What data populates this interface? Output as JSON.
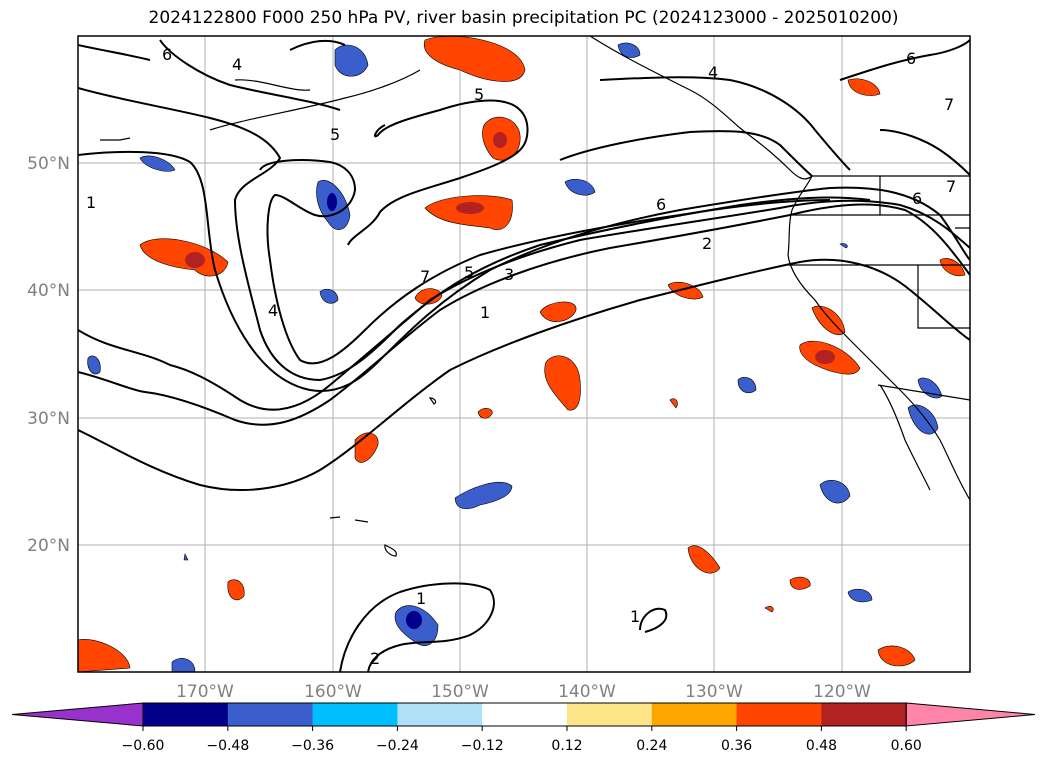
{
  "title": "2024122800 F000 250 hPa PV, river basin precipitation PC (2024123000 - 2025010200)",
  "map": {
    "lat_labels": [
      "50°N",
      "40°N",
      "30°N",
      "20°N"
    ],
    "lon_labels": [
      "170°W",
      "160°W",
      "150°W",
      "140°W",
      "130°W",
      "120°W"
    ],
    "contour_labels": [
      {
        "text": "1"
      },
      {
        "text": "1"
      },
      {
        "text": "1"
      },
      {
        "text": "1"
      },
      {
        "text": "2"
      },
      {
        "text": "2"
      },
      {
        "text": "3"
      },
      {
        "text": "4"
      },
      {
        "text": "4"
      },
      {
        "text": "4"
      },
      {
        "text": "5"
      },
      {
        "text": "5"
      },
      {
        "text": "5"
      },
      {
        "text": "6"
      },
      {
        "text": "6"
      },
      {
        "text": "6"
      },
      {
        "text": "6"
      },
      {
        "text": "7"
      },
      {
        "text": "7"
      },
      {
        "text": "7"
      }
    ]
  },
  "colorbar": {
    "ticks": [
      "−0.60",
      "−0.48",
      "−0.36",
      "−0.24",
      "−0.12",
      "0.12",
      "0.24",
      "0.36",
      "0.48",
      "0.60"
    ],
    "colors": [
      "#9932cc",
      "#00008b",
      "#3a5fcd",
      "#00bfff",
      "#b0e0f8",
      "#ffffff",
      "#fde68a",
      "#ffa500",
      "#ff4500",
      "#b22222",
      "#ff85a8"
    ]
  }
}
